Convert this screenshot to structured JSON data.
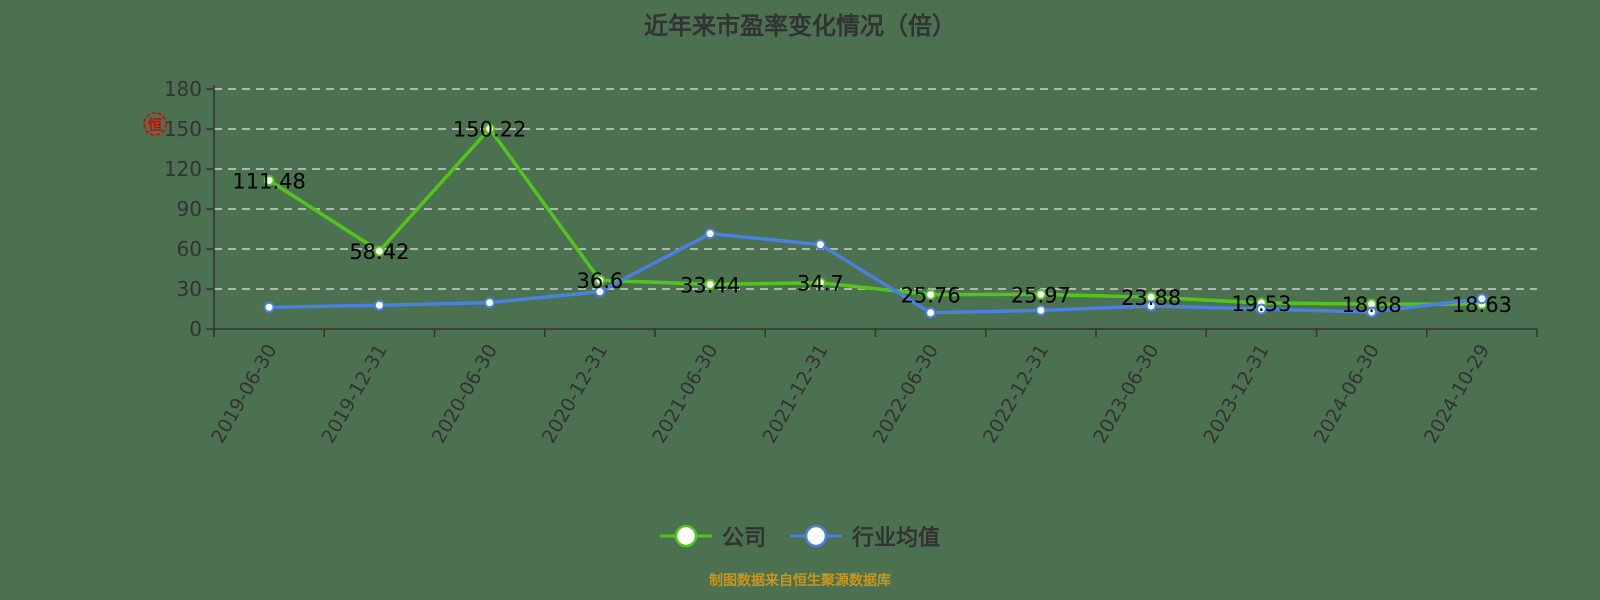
{
  "chart_data": {
    "type": "line",
    "title": "近年来市盈率变化情况（倍）",
    "xlabel": "",
    "ylabel": "",
    "ylim": [
      0,
      180
    ],
    "yticks": [
      0,
      30,
      60,
      90,
      120,
      150,
      180
    ],
    "grid": "horizontal dashed",
    "legend_position": "bottom",
    "categories": [
      "2019-06-30",
      "2019-12-31",
      "2020-06-30",
      "2020-12-31",
      "2021-06-30",
      "2021-12-31",
      "2022-06-30",
      "2022-12-31",
      "2023-06-30",
      "2023-12-31",
      "2024-06-30",
      "2024-10-29"
    ],
    "series": [
      {
        "name": "公司",
        "color": "#52c41a",
        "labeled": true,
        "values": [
          111.48,
          58.42,
          150.22,
          36.6,
          33.44,
          34.7,
          25.76,
          25.97,
          23.88,
          19.53,
          18.68,
          18.63
        ]
      },
      {
        "name": "行业均值",
        "color": "#4a80e0",
        "labeled": false,
        "values": [
          16.3,
          17.8,
          19.8,
          28.0,
          71.5,
          63.3,
          12.2,
          14.0,
          17.3,
          15.0,
          12.7,
          22.7
        ]
      }
    ]
  },
  "title": "近年来市盈率变化情况（倍）",
  "legend": [
    {
      "label": "公司",
      "color": "#52c41a"
    },
    {
      "label": "行业均值",
      "color": "#4a80e0"
    }
  ],
  "source": "制图数据来自恒生聚源数据库",
  "watermark_icon": "hengsheng-stamp-icon"
}
